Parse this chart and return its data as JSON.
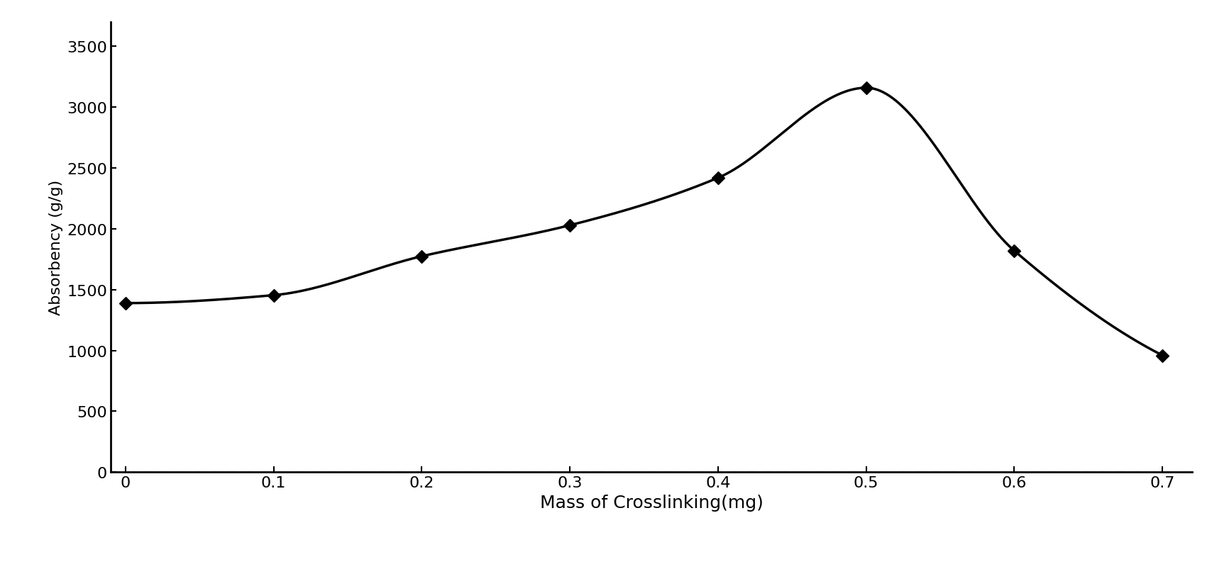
{
  "x": [
    0,
    0.1,
    0.2,
    0.3,
    0.4,
    0.5,
    0.6,
    0.7
  ],
  "y": [
    1390,
    1455,
    1775,
    2030,
    2420,
    3160,
    1820,
    960
  ],
  "xlabel": "Mass of Crosslinking(mg)",
  "ylabel": "Absorbency (g/g)",
  "xlim": [
    -0.01,
    0.72
  ],
  "ylim": [
    0,
    3700
  ],
  "yticks": [
    0,
    500,
    1000,
    1500,
    2000,
    2500,
    3000,
    3500
  ],
  "xticks": [
    0,
    0.1,
    0.2,
    0.3,
    0.4,
    0.5,
    0.6,
    0.7
  ],
  "xtick_labels": [
    "0",
    "0.1",
    "0.2",
    "0.3",
    "0.4",
    "0.5",
    "0.6",
    "0.7"
  ],
  "line_color": "#000000",
  "marker": "D",
  "marker_size": 9,
  "line_width": 2.5,
  "background_color": "#ffffff",
  "xlabel_fontsize": 18,
  "ylabel_fontsize": 16,
  "tick_fontsize": 16,
  "figsize": [
    17.32,
    8.04
  ],
  "dpi": 100
}
